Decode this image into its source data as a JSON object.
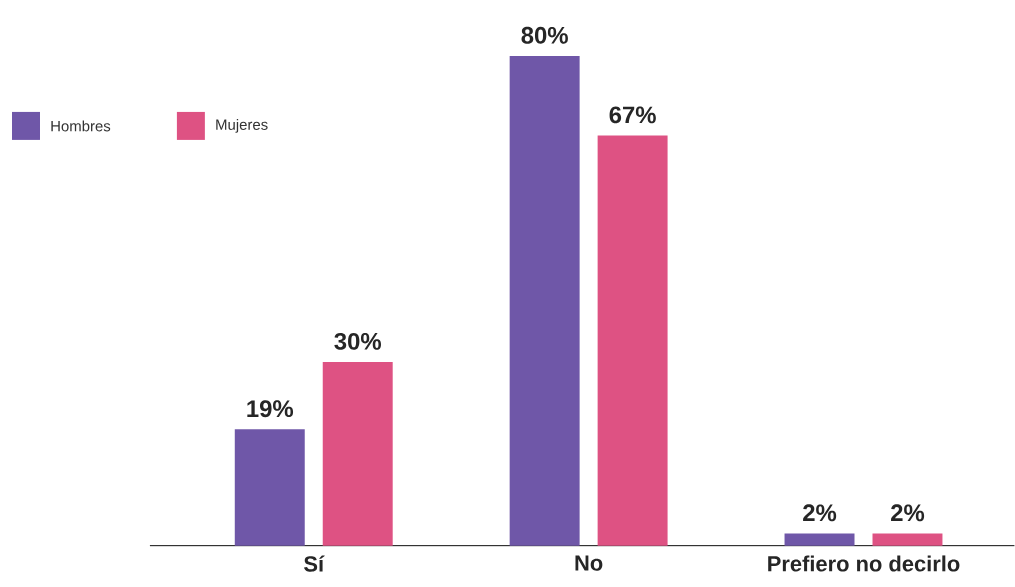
{
  "chart_data": {
    "type": "bar",
    "categories": [
      "Sí",
      "No",
      "Prefiero no decirlo"
    ],
    "series": [
      {
        "name": "Hombres",
        "color": "#6f57a8",
        "values": [
          19,
          80,
          2
        ],
        "value_labels": [
          "19%",
          "80%",
          "2%"
        ]
      },
      {
        "name": "Mujeres",
        "color": "#de5283",
        "values": [
          30,
          67,
          2
        ],
        "value_labels": [
          "30%",
          "67%",
          "2%"
        ]
      }
    ],
    "legend": "top left"
  }
}
